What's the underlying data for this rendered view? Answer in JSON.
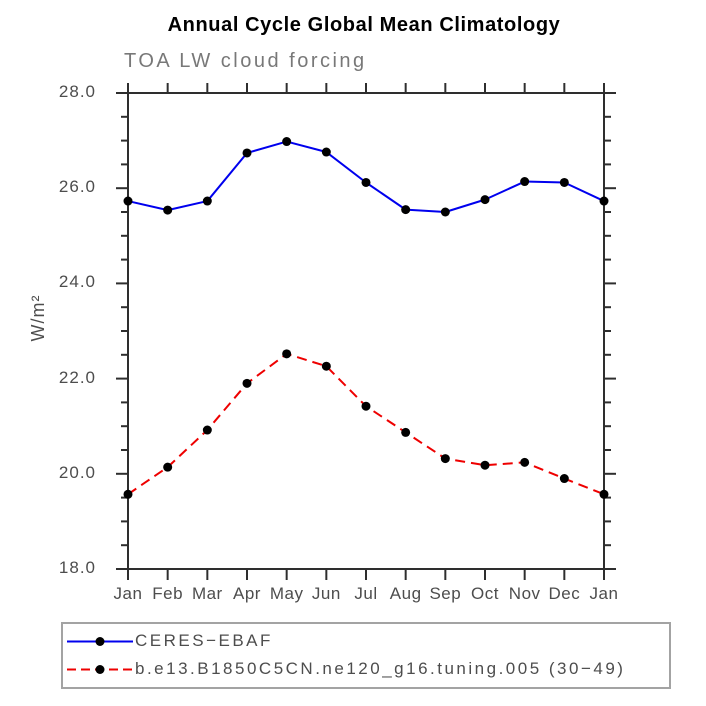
{
  "colors": {
    "frame": "#2e2e2e",
    "dot": "#000000",
    "ceres_blue": "#0000ee",
    "model_red": "#ee0000",
    "gray_text": "#4d4d4d",
    "subtitle_gray": "#787878",
    "legend_border": "#a3a3a3"
  },
  "chart_data": {
    "type": "line",
    "title": "Annual Cycle Global Mean Climatology",
    "subtitle": "TOA LW cloud forcing",
    "ylabel": "W/m²",
    "categories": [
      "Jan",
      "Feb",
      "Mar",
      "Apr",
      "May",
      "Jun",
      "Jul",
      "Aug",
      "Sep",
      "Oct",
      "Nov",
      "Dec",
      "Jan"
    ],
    "y_ticklabels": [
      "28.0",
      "26.0",
      "24.0",
      "22.0",
      "20.0",
      "18.0"
    ],
    "ylim": [
      18.0,
      28.0
    ],
    "y_major_step": 2.0,
    "y_minor_step": 0.5,
    "grid": false,
    "legend_position": "bottom",
    "series": [
      {
        "name": "CERES−EBAF",
        "color": "#0000ee",
        "style": "solid",
        "marker": "filled-circle",
        "values": [
          25.73,
          25.54,
          25.73,
          26.74,
          26.98,
          26.76,
          26.12,
          25.55,
          25.5,
          25.76,
          26.14,
          26.12,
          25.73
        ]
      },
      {
        "name": "b.e13.B1850C5CN.ne120_g16.tuning.005 (30−49)",
        "color": "#ee0000",
        "style": "dashed",
        "marker": "filled-circle",
        "values": [
          19.57,
          20.14,
          20.92,
          21.9,
          22.52,
          22.26,
          21.42,
          20.87,
          20.32,
          20.18,
          20.24,
          19.9,
          19.57
        ]
      }
    ]
  }
}
